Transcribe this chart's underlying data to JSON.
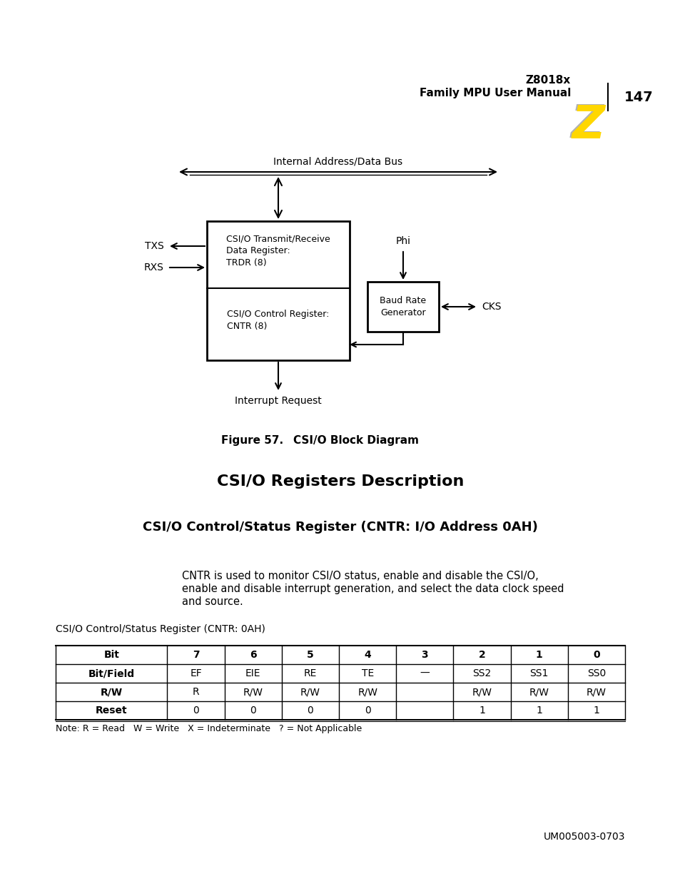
{
  "page_title_line1": "Z8018x",
  "page_title_line2": "Family MPU User Manual",
  "page_number": "147",
  "figure_caption_bold": "Figure 57.",
  "figure_caption_rest": "    CSI/O Block Diagram",
  "section_title": "CSI/O Registers Description",
  "subsection_title": "CSI/O Control/Status Register (CNTR: I/O Address 0AH)",
  "desc_line1": "CNTR is used to monitor CSI/O status, enable and disable the CSI/O,",
  "desc_line2": "enable and disable interrupt generation, and select the data clock speed",
  "desc_line3": "and source.",
  "table_label": "CSI/O Control/Status Register (CNTR: 0AH)",
  "table_note": "Note: R = Read   W = Write   X = Indeterminate   ? = Not Applicable",
  "footer": "UM005003-0703",
  "bus_label": "Internal Address/Data Bus",
  "phi_label": "Phi",
  "txs_label": "TXS",
  "rxs_label": "RXS",
  "cks_label": "CKS",
  "interrupt_label": "Interrupt Request",
  "main_box_text_top": "CSI/O Transmit/Receive\nData Register:\nTRDR (8)",
  "main_box_text_bot": "CSI/O Control Register:\nCNTR (8)",
  "baud_box_text": "Baud Rate\nGenerator",
  "table_headers": [
    "Bit",
    "7",
    "6",
    "5",
    "4",
    "3",
    "2",
    "1",
    "0"
  ],
  "table_row1": [
    "Bit/Field",
    "EF",
    "EIE",
    "RE",
    "TE",
    "—",
    "SS2",
    "SS1",
    "SS0"
  ],
  "table_row2": [
    "R/W",
    "R",
    "R/W",
    "R/W",
    "R/W",
    "",
    "R/W",
    "R/W",
    "R/W"
  ],
  "table_row3": [
    "Reset",
    "0",
    "0",
    "0",
    "0",
    "",
    "1",
    "1",
    "1"
  ],
  "bg_color": "#ffffff",
  "text_color": "#000000",
  "box_color": "#000000",
  "zilog_yellow": "#FFD700"
}
